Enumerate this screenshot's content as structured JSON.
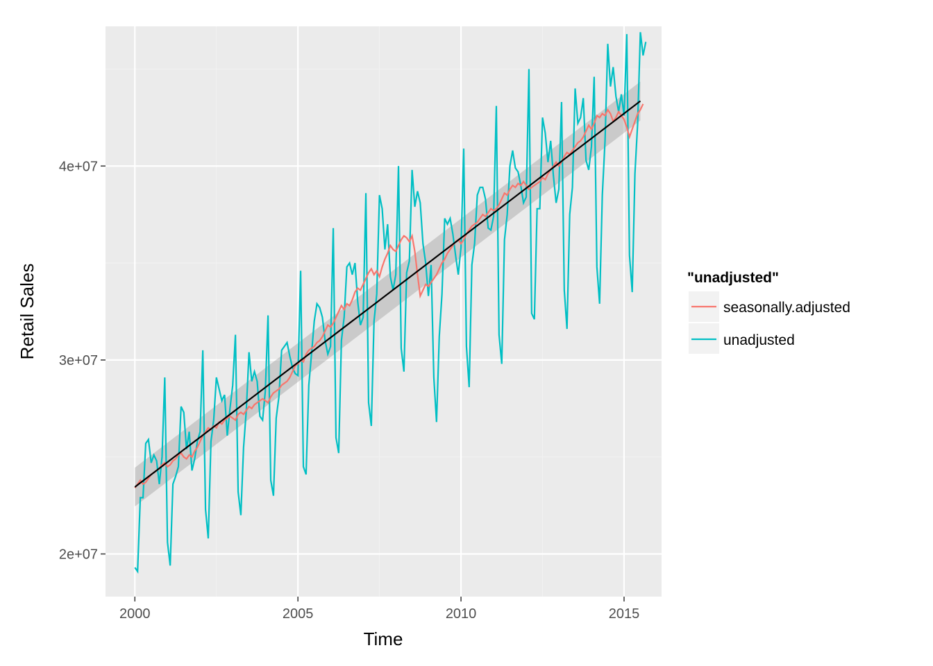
{
  "chart_data": {
    "type": "line",
    "title": "",
    "xlabel": "Time",
    "ylabel": "Retail Sales",
    "xlim": [
      1999.1,
      2016.15
    ],
    "ylim": [
      17800000,
      47200000
    ],
    "x_ticks": [
      2000,
      2005,
      2010,
      2015
    ],
    "x_tick_labels": [
      "2000",
      "2005",
      "2010",
      "2015"
    ],
    "y_ticks": [
      20000000,
      30000000,
      40000000
    ],
    "y_tick_labels": [
      "2e+07",
      "3e+07",
      "4e+07"
    ],
    "grid": true,
    "legend": {
      "title": "\"unadjusted\"",
      "position": "right",
      "entries": [
        "seasonally.adjusted",
        "unadjusted"
      ]
    },
    "x_start": 2000,
    "series": [
      {
        "name": "seasonally.adjusted",
        "color": "#F8766D",
        "monthly_values": [
          23400000,
          23600000,
          23800000,
          23600000,
          23700000,
          23900000,
          24100000,
          24200000,
          24300000,
          24400000,
          24600000,
          24700000,
          24500000,
          24600000,
          24800000,
          24900000,
          25100000,
          25200000,
          25000000,
          24900000,
          25100000,
          25000000,
          25300000,
          25500000,
          25800000,
          26100000,
          26300000,
          26500000,
          26400000,
          26600000,
          26500000,
          26800000,
          26700000,
          26900000,
          27000000,
          27100000,
          27000000,
          26900000,
          27200000,
          27300000,
          27200000,
          27400000,
          27600000,
          27500000,
          27700000,
          27800000,
          27900000,
          28000000,
          27900000,
          27800000,
          28100000,
          28300000,
          28400000,
          28500000,
          28700000,
          28800000,
          28900000,
          29100000,
          29400000,
          29700000,
          29800000,
          30000000,
          29900000,
          30300000,
          30500000,
          30600000,
          30700000,
          30900000,
          31000000,
          31200000,
          31500000,
          31800000,
          31700000,
          31900000,
          32200000,
          32500000,
          32800000,
          32600000,
          32900000,
          32800000,
          33100000,
          33500000,
          33700000,
          33600000,
          33900000,
          34200000,
          34500000,
          34700000,
          34400000,
          34600000,
          34300000,
          34800000,
          35200000,
          35500000,
          35900000,
          35700000,
          35600000,
          35900000,
          36200000,
          36400000,
          36300000,
          36100000,
          36400000,
          35600000,
          34400000,
          33300000,
          33600000,
          33900000,
          33800000,
          34000000,
          34200000,
          34400000,
          34700000,
          35000000,
          35200000,
          35500000,
          35700000,
          35900000,
          36100000,
          36200000,
          36000000,
          36200000,
          36500000,
          36700000,
          36900000,
          37000000,
          37100000,
          37300000,
          37500000,
          37400000,
          37600000,
          37800000,
          37700000,
          37800000,
          38000000,
          38300000,
          38600000,
          38500000,
          38800000,
          39000000,
          38900000,
          39100000,
          39000000,
          39200000,
          39000000,
          38800000,
          38900000,
          39000000,
          39100000,
          39200000,
          39400000,
          39300000,
          39600000,
          39800000,
          40000000,
          40200000,
          40000000,
          40200000,
          40500000,
          40700000,
          40600000,
          40800000,
          41000000,
          41200000,
          41300000,
          41500000,
          41800000,
          42100000,
          41900000,
          42200000,
          42600000,
          42500000,
          42700000,
          42600000,
          42900000,
          42700000,
          42300000,
          42500000,
          42800000,
          42600000,
          42400000,
          42000000,
          41500000,
          41900000,
          42300000,
          42700000,
          42900000,
          43200000
        ]
      },
      {
        "name": "unadjusted",
        "color": "#00BFC4",
        "monthly_values": [
          19300000,
          19100000,
          22900000,
          22900000,
          25700000,
          25900000,
          24700000,
          25100000,
          24800000,
          23600000,
          25000000,
          29100000,
          20600000,
          19400000,
          23600000,
          24000000,
          24500000,
          27600000,
          27300000,
          25400000,
          26300000,
          24300000,
          24900000,
          25800000,
          26300000,
          30500000,
          22300000,
          20800000,
          25800000,
          26900000,
          29100000,
          28500000,
          27900000,
          28200000,
          26100000,
          27500000,
          28700000,
          31300000,
          23200000,
          22000000,
          25500000,
          27400000,
          30400000,
          28900000,
          29400000,
          28900000,
          27100000,
          26900000,
          28400000,
          32300000,
          23800000,
          23000000,
          27000000,
          28100000,
          30500000,
          30700000,
          30900000,
          30200000,
          29600000,
          29300000,
          29200000,
          34600000,
          24500000,
          24100000,
          28700000,
          30300000,
          32000000,
          32900000,
          32700000,
          32200000,
          31000000,
          30300000,
          30700000,
          36800000,
          26000000,
          25200000,
          31000000,
          32200000,
          34800000,
          35000000,
          34400000,
          35000000,
          33000000,
          31800000,
          32200000,
          38600000,
          27800000,
          26600000,
          32000000,
          33400000,
          38500000,
          37800000,
          35700000,
          37000000,
          34300000,
          33600000,
          34400000,
          40000000,
          30600000,
          29400000,
          34500000,
          35100000,
          39800000,
          37900000,
          38700000,
          38100000,
          36000000,
          35000000,
          33300000,
          34900000,
          29100000,
          26800000,
          31200000,
          33400000,
          37300000,
          37000000,
          37300000,
          36500000,
          35400000,
          34400000,
          35800000,
          40900000,
          30700000,
          28600000,
          34900000,
          36000000,
          38500000,
          38900000,
          38900000,
          38300000,
          36800000,
          36700000,
          37400000,
          43100000,
          31300000,
          29800000,
          36200000,
          37500000,
          40000000,
          40800000,
          39900000,
          39700000,
          39000000,
          38100000,
          38400000,
          45000000,
          32400000,
          32100000,
          37800000,
          37800000,
          42500000,
          41700000,
          40200000,
          41300000,
          39500000,
          38100000,
          38800000,
          43300000,
          33600000,
          31600000,
          37500000,
          38900000,
          44000000,
          42200000,
          42500000,
          43500000,
          40300000,
          39800000,
          41000000,
          44600000,
          34800000,
          32900000,
          38500000,
          41300000,
          46300000,
          44100000,
          45100000,
          43600000,
          42800000,
          43700000,
          42600000,
          46800000,
          35400000,
          33500000,
          39600000,
          42200000,
          46900000,
          45700000,
          46400000
        ]
      },
      {
        "name": "",
        "color": "#000000",
        "type": "linear-trend",
        "x": [
          2000,
          2015.5
        ],
        "values": [
          23450000,
          43350000
        ],
        "band_halfwidth": [
          1000000,
          1000000
        ],
        "band_color": "#999999"
      }
    ]
  }
}
